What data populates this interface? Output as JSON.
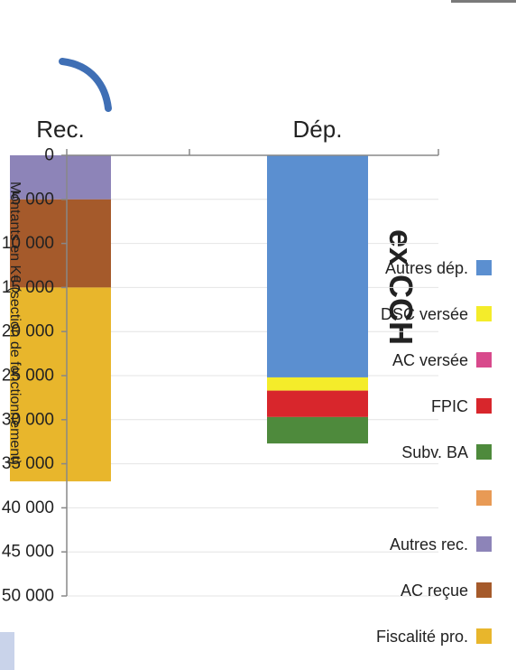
{
  "chart_data": {
    "type": "bar",
    "stacked": true,
    "title": "ex CCH",
    "ylabel": "Montants en K€ (section de fonctionnement)",
    "xlabel": "",
    "categories": [
      "Dép.",
      "Rec."
    ],
    "ylim": [
      0,
      50000
    ],
    "yticks": [
      0,
      5000,
      10000,
      15000,
      20000,
      25000,
      30000,
      35000,
      40000,
      45000,
      50000
    ],
    "ytick_labels": [
      "0",
      "5 000",
      "10 000",
      "15 000",
      "20 000",
      "25 000",
      "30 000",
      "35 000",
      "40 000",
      "45 000",
      "50 000"
    ],
    "legend_position": "right",
    "series": [
      {
        "name": "Autres dép.",
        "color": "#5b8fd0",
        "values": [
          25200,
          0
        ]
      },
      {
        "name": "DSC versée",
        "color": "#f4ec2a",
        "values": [
          1500,
          0
        ]
      },
      {
        "name": "AC versée",
        "color": "#d84a8c",
        "values": [
          0,
          0
        ]
      },
      {
        "name": "FPIC",
        "color": "#d8262c",
        "values": [
          3000,
          0
        ]
      },
      {
        "name": "Subv. BA",
        "color": "#4e8a3c",
        "values": [
          3000,
          0
        ]
      },
      {
        "name": "",
        "color": "#e89a55",
        "values": [
          0,
          0
        ]
      },
      {
        "name": "Autres rec.",
        "color": "#8d84b8",
        "values": [
          0,
          5000
        ]
      },
      {
        "name": "AC reçue",
        "color": "#a55a2b",
        "values": [
          0,
          10000
        ]
      },
      {
        "name": "Fiscalité pro.",
        "color": "#e8b62c",
        "values": [
          0,
          22000
        ]
      }
    ],
    "legend_order": [
      "Fiscalité pro.",
      "AC reçue",
      "Autres rec.",
      "",
      "Subv. BA",
      "FPIC",
      "AC versée",
      "DSC versée",
      "Autres dép."
    ]
  }
}
